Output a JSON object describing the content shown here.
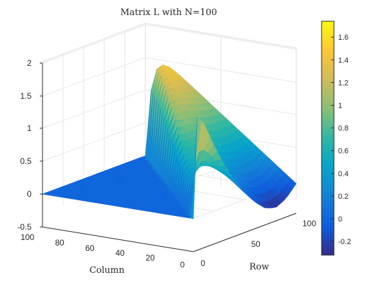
{
  "chart_data": {
    "type": "surface",
    "title": "Matrix L with N=100",
    "xlabel": "Column",
    "ylabel": "Row",
    "zlabel": "",
    "xlim": [
      0,
      100
    ],
    "ylim": [
      0,
      100
    ],
    "zlim": [
      -0.5,
      2
    ],
    "x_ticks": [
      "0",
      "20",
      "40",
      "60",
      "80",
      "100"
    ],
    "y_ticks": [
      "0",
      "50",
      "100"
    ],
    "z_ticks": [
      "-0.5",
      "0",
      "0.5",
      "1",
      "1.5",
      "2"
    ],
    "colorbar": {
      "range": [
        -0.32,
        1.74
      ],
      "ticks": [
        "-0.2",
        "0",
        "0.2",
        "0.4",
        "0.6",
        "0.8",
        "1",
        "1.2",
        "1.4",
        "1.6"
      ],
      "colormap": "parula"
    },
    "grid": true,
    "surface_profile": {
      "note_free": true,
      "row_steps": [
        0,
        10,
        20,
        30,
        40,
        50,
        60,
        70,
        80,
        90,
        100
      ],
      "peak_along_diagonal": [
        0.0,
        0.15,
        0.3,
        0.5,
        0.75,
        1.0,
        1.25,
        1.45,
        1.6,
        1.7,
        1.72
      ],
      "last_column_values": [
        1.62,
        1.4,
        1.0,
        0.65,
        0.35,
        0.1,
        -0.1,
        -0.25,
        -0.3,
        -0.22,
        -0.05
      ]
    }
  },
  "colors": {
    "low": "#352a87",
    "high": "#f9fb0e"
  }
}
